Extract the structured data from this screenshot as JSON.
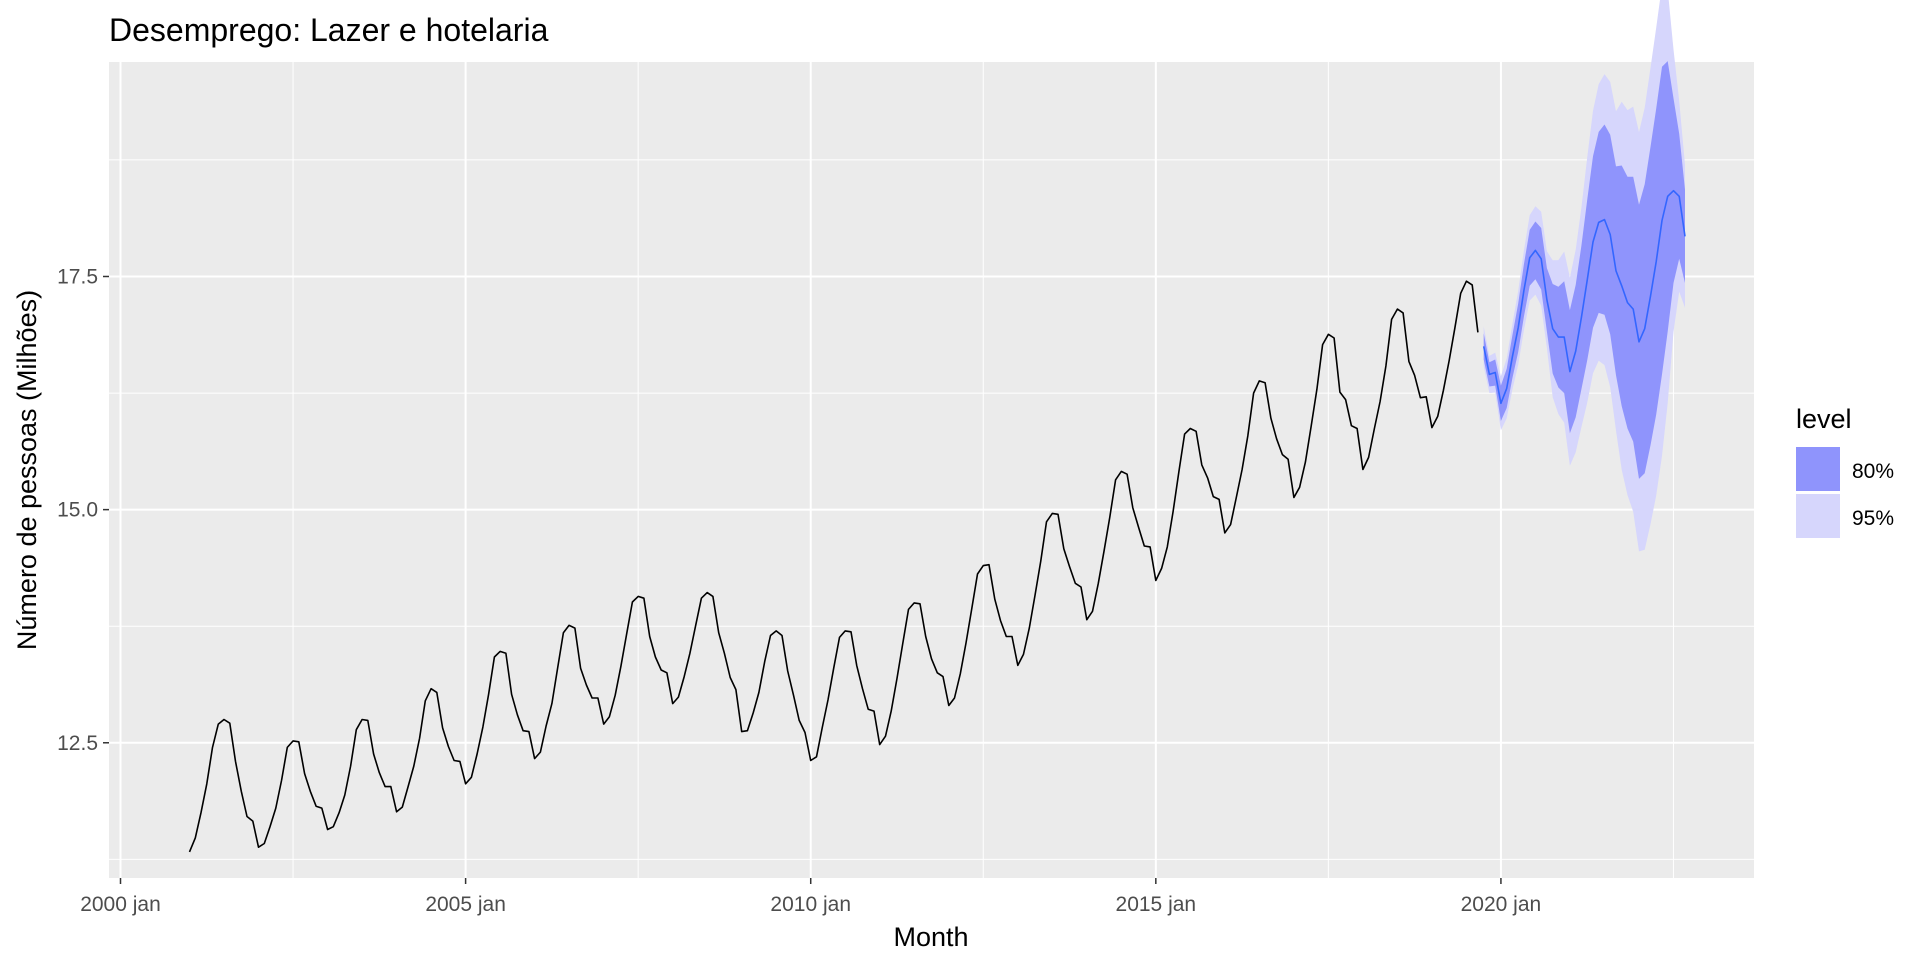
{
  "chart_data": {
    "type": "line",
    "title": "Desemprego: Lazer e hotelaria",
    "xlabel": "Month",
    "ylabel": "Número de pessoas (Milhões)",
    "x_ticks": [
      "2000 jan",
      "2005 jan",
      "2010 jan",
      "2015 jan",
      "2020 jan"
    ],
    "y_ticks": [
      "12.5",
      "15.0",
      "17.5"
    ],
    "xlim": [
      "1999-11",
      "2023-09"
    ],
    "ylim": [
      11.05,
      19.8
    ],
    "grid": true,
    "legend": {
      "title": "level",
      "placement": "right",
      "entries": [
        {
          "label": "80%",
          "color": "#8f94fc"
        },
        {
          "label": "95%",
          "color": "#d6d6fc"
        }
      ]
    },
    "colors": {
      "panel": "#ebebeb",
      "grid": "#ffffff",
      "history_line": "#000000",
      "forecast_line": "#3366ff"
    },
    "history": {
      "start": "2001-01",
      "end": "2019-09",
      "peak_month": "July",
      "values": [
        11.33,
        11.48,
        11.75,
        12.06,
        12.45,
        12.7,
        12.75,
        12.71,
        12.3,
        11.98,
        11.71,
        11.66,
        11.38,
        11.42,
        11.6,
        11.8,
        12.1,
        12.45,
        12.52,
        12.51,
        12.17,
        11.98,
        11.82,
        11.8,
        11.57,
        11.6,
        11.75,
        11.94,
        12.25,
        12.64,
        12.75,
        12.74,
        12.38,
        12.18,
        12.03,
        12.03,
        11.76,
        11.81,
        12.03,
        12.25,
        12.55,
        12.95,
        13.08,
        13.04,
        12.66,
        12.46,
        12.31,
        12.3,
        12.06,
        12.13,
        12.38,
        12.67,
        13.02,
        13.42,
        13.48,
        13.46,
        13.02,
        12.8,
        12.63,
        12.62,
        12.33,
        12.4,
        12.68,
        12.92,
        13.3,
        13.68,
        13.76,
        13.73,
        13.3,
        13.12,
        12.98,
        12.98,
        12.7,
        12.78,
        13.01,
        13.32,
        13.67,
        14.01,
        14.07,
        14.05,
        13.64,
        13.42,
        13.28,
        13.25,
        12.92,
        12.99,
        13.21,
        13.46,
        13.76,
        14.05,
        14.11,
        14.07,
        13.68,
        13.46,
        13.2,
        13.07,
        12.62,
        12.63,
        12.82,
        13.04,
        13.37,
        13.65,
        13.7,
        13.65,
        13.27,
        13.01,
        12.74,
        12.61,
        12.31,
        12.35,
        12.66,
        12.96,
        13.3,
        13.63,
        13.7,
        13.69,
        13.33,
        13.08,
        12.86,
        12.84,
        12.48,
        12.57,
        12.84,
        13.19,
        13.56,
        13.93,
        14.0,
        13.99,
        13.64,
        13.4,
        13.25,
        13.21,
        12.9,
        12.98,
        13.24,
        13.57,
        13.94,
        14.31,
        14.4,
        14.41,
        14.04,
        13.81,
        13.64,
        13.64,
        13.33,
        13.45,
        13.73,
        14.08,
        14.45,
        14.87,
        14.96,
        14.95,
        14.58,
        14.39,
        14.21,
        14.17,
        13.82,
        13.91,
        14.21,
        14.56,
        14.92,
        15.32,
        15.41,
        15.38,
        15.02,
        14.81,
        14.61,
        14.6,
        14.24,
        14.37,
        14.6,
        14.98,
        15.4,
        15.81,
        15.87,
        15.84,
        15.48,
        15.34,
        15.14,
        15.11,
        14.75,
        14.84,
        15.13,
        15.43,
        15.79,
        16.25,
        16.38,
        16.36,
        15.98,
        15.76,
        15.59,
        15.54,
        15.13,
        15.24,
        15.51,
        15.89,
        16.29,
        16.77,
        16.88,
        16.84,
        16.26,
        16.18,
        15.9,
        15.87,
        15.43,
        15.56,
        15.87,
        16.16,
        16.54,
        17.04,
        17.15,
        17.11,
        16.59,
        16.44,
        16.2,
        16.21,
        15.88,
        16.0,
        16.28,
        16.6,
        16.95,
        17.32,
        17.45,
        17.41,
        16.9
      ]
    },
    "forecast": {
      "start": "2019-10",
      "end": "2022-09",
      "mean": [
        16.75,
        16.45,
        16.47,
        16.14,
        16.3,
        16.64,
        16.95,
        17.35,
        17.7,
        17.78,
        17.69,
        17.25,
        16.94,
        16.85,
        16.85,
        16.48,
        16.7,
        17.06,
        17.46,
        17.87,
        18.08,
        18.11,
        17.95,
        17.56,
        17.4,
        17.22,
        17.15,
        16.8,
        16.94,
        17.29,
        17.66,
        18.1,
        18.36,
        18.42,
        18.36,
        17.93
      ],
      "lo80": [
        16.61,
        16.32,
        16.33,
        15.95,
        16.09,
        16.41,
        16.69,
        17.07,
        17.4,
        17.47,
        17.36,
        16.91,
        16.46,
        16.31,
        16.25,
        15.82,
        15.99,
        16.29,
        16.6,
        16.95,
        17.11,
        17.09,
        16.88,
        16.44,
        16.11,
        15.87,
        15.73,
        15.33,
        15.39,
        15.69,
        16.02,
        16.45,
        16.91,
        17.43,
        17.69,
        17.43
      ],
      "hi80": [
        16.89,
        16.58,
        16.61,
        16.33,
        16.51,
        16.87,
        17.21,
        17.63,
        18.0,
        18.09,
        18.02,
        17.59,
        17.42,
        17.39,
        17.45,
        17.14,
        17.41,
        17.83,
        18.32,
        18.79,
        19.05,
        19.13,
        19.02,
        18.68,
        18.69,
        18.57,
        18.57,
        18.27,
        18.49,
        18.89,
        19.3,
        19.75,
        19.81,
        19.41,
        19.03,
        18.43
      ]
    }
  }
}
